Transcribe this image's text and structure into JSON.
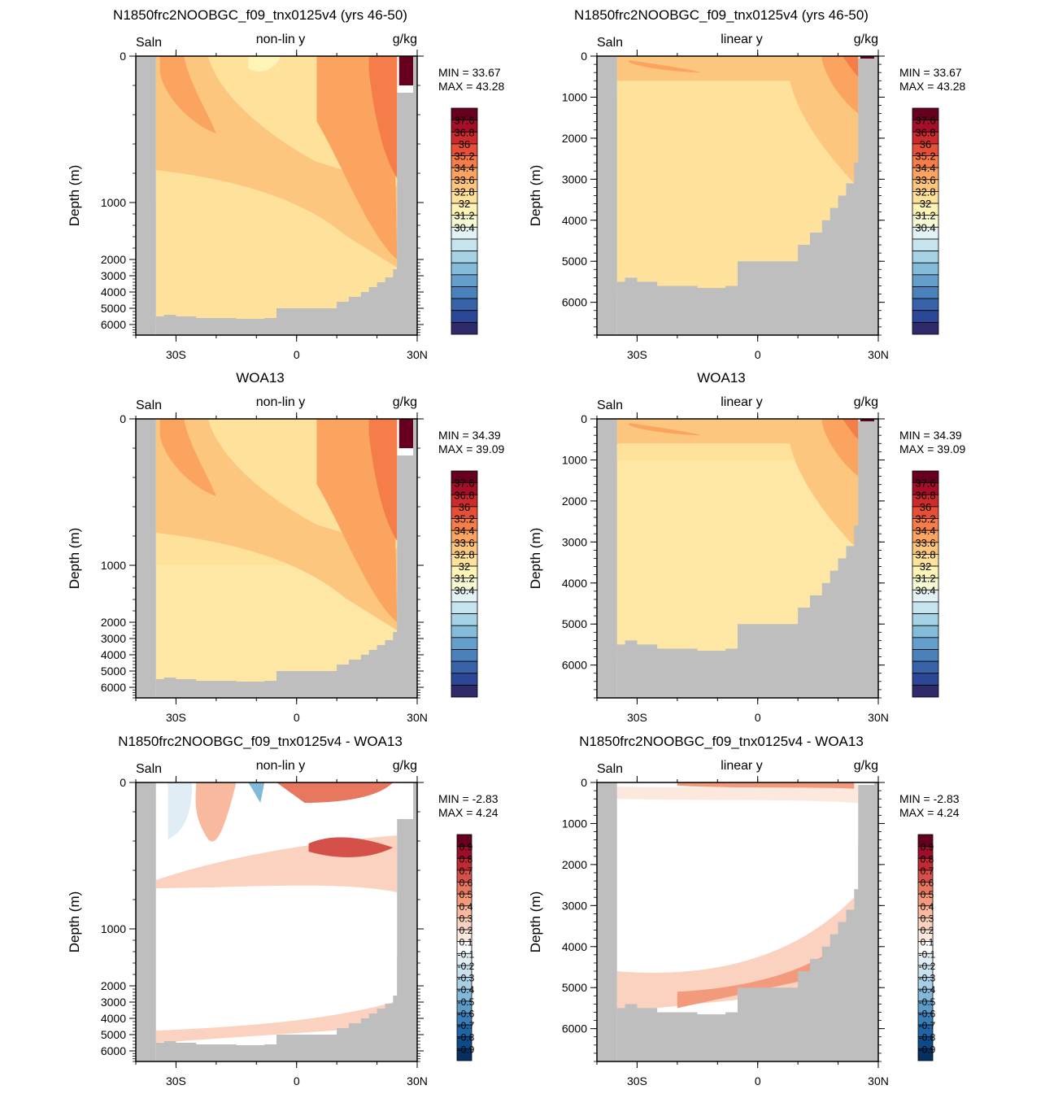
{
  "figure": {
    "common": {
      "field_label": "Saln",
      "units": "g/kg",
      "ylabel": "Depth (m)",
      "xticks": [
        "30S",
        "0",
        "30N"
      ],
      "land_color": "#bebebe"
    },
    "full_colorbar_levels": [
      "37.6",
      "36.8",
      "36",
      "35.2",
      "34.4",
      "33.6",
      "32.8",
      "32",
      "31.2",
      "30.4"
    ],
    "full_colorbar_colors": [
      "#67001f",
      "#a50f27",
      "#cb2b2c",
      "#e54f37",
      "#f57d4a",
      "#fba45f",
      "#fdc67e",
      "#fee29b",
      "#fef4b5",
      "#f6fad4",
      "#e3f2f3",
      "#c6e4ee",
      "#a6d2e5",
      "#83bbd9",
      "#649fcb",
      "#4b81bb",
      "#3863a8",
      "#2b4796",
      "#2f2a6b"
    ],
    "diff_colorbar_levels": [
      "0.9",
      "0.8",
      "0.7",
      "0.6",
      "0.5",
      "0.4",
      "0.3",
      "0.2",
      "0.1",
      "-0.1",
      "-0.2",
      "-0.3",
      "-0.4",
      "-0.5",
      "-0.6",
      "-0.7",
      "-0.8",
      "-0.9"
    ],
    "diff_colorbar_colors": [
      "#67001f",
      "#9e0d2a",
      "#bf2a33",
      "#d6504a",
      "#e8775f",
      "#f49a7c",
      "#f9b99e",
      "#fbd2c0",
      "#fde8dd",
      "#ffffff",
      "#e1edf4",
      "#c9e0ed",
      "#a8cfe4",
      "#82b8d8",
      "#5a9bc8",
      "#3a7db7",
      "#2064a6",
      "#0c4a8a",
      "#053061"
    ]
  },
  "panels": [
    {
      "title": "N1850frc2NOOBGC_f09_tnx0125v4 (yrs 46-50)",
      "subtitle": "non-lin y",
      "scale": "nonlin",
      "kind": "full",
      "yticks": [
        "0",
        "1000",
        "2000",
        "3000",
        "4000",
        "5000",
        "6000"
      ],
      "min_label": "MIN =  33.67",
      "max_label": "MAX =  43.28"
    },
    {
      "title": "N1850frc2NOOBGC_f09_tnx0125v4 (yrs 46-50)",
      "subtitle": "linear y",
      "scale": "linear",
      "kind": "full",
      "yticks": [
        "0",
        "1000",
        "2000",
        "3000",
        "4000",
        "5000",
        "6000"
      ],
      "min_label": "MIN =  33.67",
      "max_label": "MAX =  43.28"
    },
    {
      "title": "WOA13",
      "subtitle": "non-lin y",
      "scale": "nonlin",
      "kind": "full",
      "yticks": [
        "0",
        "1000",
        "2000",
        "3000",
        "4000",
        "5000",
        "6000"
      ],
      "min_label": "MIN =  34.39",
      "max_label": "MAX =  39.09"
    },
    {
      "title": "WOA13",
      "subtitle": "linear y",
      "scale": "linear",
      "kind": "full",
      "yticks": [
        "0",
        "1000",
        "2000",
        "3000",
        "4000",
        "5000",
        "6000"
      ],
      "min_label": "MIN =  34.39",
      "max_label": "MAX =  39.09"
    },
    {
      "title": "N1850frc2NOOBGC_f09_tnx0125v4 - WOA13",
      "subtitle": "non-lin y",
      "scale": "nonlin",
      "kind": "diff",
      "yticks": [
        "0",
        "1000",
        "2000",
        "3000",
        "4000",
        "5000",
        "6000"
      ],
      "min_label": "MIN =  -2.83",
      "max_label": "MAX =   4.24"
    },
    {
      "title": "N1850frc2NOOBGC_f09_tnx0125v4 - WOA13",
      "subtitle": "linear y",
      "scale": "linear",
      "kind": "diff",
      "yticks": [
        "0",
        "1000",
        "2000",
        "3000",
        "4000",
        "5000",
        "6000"
      ],
      "min_label": "MIN =  -2.83",
      "max_label": "MAX =   4.24"
    }
  ],
  "chart_data": [
    {
      "type": "heatmap",
      "title": "N1850frc2NOOBGC_f09_tnx0125v4 (yrs 46-50)",
      "subtitle": "non-lin y",
      "variable": "Saln",
      "units": "g/kg",
      "ylabel": "Depth (m)",
      "x_ticks": [
        "30S",
        "0",
        "30N"
      ],
      "y_ticks": [
        0,
        1000,
        2000,
        3000,
        4000,
        5000,
        6000
      ],
      "y_scale": "non-linear",
      "min": 33.67,
      "max": 43.28,
      "colorbar": [
        37.6,
        36.8,
        36,
        35.2,
        34.4,
        33.6,
        32.8,
        32,
        31.2,
        30.4
      ]
    },
    {
      "type": "heatmap",
      "title": "N1850frc2NOOBGC_f09_tnx0125v4 (yrs 46-50)",
      "subtitle": "linear y",
      "variable": "Saln",
      "units": "g/kg",
      "ylabel": "Depth (m)",
      "x_ticks": [
        "30S",
        "0",
        "30N"
      ],
      "y_ticks": [
        0,
        1000,
        2000,
        3000,
        4000,
        5000,
        6000
      ],
      "y_scale": "linear",
      "min": 33.67,
      "max": 43.28,
      "colorbar": [
        37.6,
        36.8,
        36,
        35.2,
        34.4,
        33.6,
        32.8,
        32,
        31.2,
        30.4
      ]
    },
    {
      "type": "heatmap",
      "title": "WOA13",
      "subtitle": "non-lin y",
      "variable": "Saln",
      "units": "g/kg",
      "ylabel": "Depth (m)",
      "x_ticks": [
        "30S",
        "0",
        "30N"
      ],
      "y_ticks": [
        0,
        1000,
        2000,
        3000,
        4000,
        5000,
        6000
      ],
      "y_scale": "non-linear",
      "min": 34.39,
      "max": 39.09,
      "colorbar": [
        37.6,
        36.8,
        36,
        35.2,
        34.4,
        33.6,
        32.8,
        32,
        31.2,
        30.4
      ]
    },
    {
      "type": "heatmap",
      "title": "WOA13",
      "subtitle": "linear y",
      "variable": "Saln",
      "units": "g/kg",
      "ylabel": "Depth (m)",
      "x_ticks": [
        "30S",
        "0",
        "30N"
      ],
      "y_ticks": [
        0,
        1000,
        2000,
        3000,
        4000,
        5000,
        6000
      ],
      "y_scale": "linear",
      "min": 34.39,
      "max": 39.09,
      "colorbar": [
        37.6,
        36.8,
        36,
        35.2,
        34.4,
        33.6,
        32.8,
        32,
        31.2,
        30.4
      ]
    },
    {
      "type": "heatmap",
      "title": "N1850frc2NOOBGC_f09_tnx0125v4 - WOA13",
      "subtitle": "non-lin y",
      "variable": "Saln",
      "units": "g/kg",
      "ylabel": "Depth (m)",
      "x_ticks": [
        "30S",
        "0",
        "30N"
      ],
      "y_ticks": [
        0,
        1000,
        2000,
        3000,
        4000,
        5000,
        6000
      ],
      "y_scale": "non-linear",
      "min": -2.83,
      "max": 4.24,
      "colorbar": [
        0.9,
        0.8,
        0.7,
        0.6,
        0.5,
        0.4,
        0.3,
        0.2,
        0.1,
        -0.1,
        -0.2,
        -0.3,
        -0.4,
        -0.5,
        -0.6,
        -0.7,
        -0.8,
        -0.9
      ]
    },
    {
      "type": "heatmap",
      "title": "N1850frc2NOOBGC_f09_tnx0125v4 - WOA13",
      "subtitle": "linear y",
      "variable": "Saln",
      "units": "g/kg",
      "ylabel": "Depth (m)",
      "x_ticks": [
        "30S",
        "0",
        "30N"
      ],
      "y_ticks": [
        0,
        1000,
        2000,
        3000,
        4000,
        5000,
        6000
      ],
      "y_scale": "linear",
      "min": -2.83,
      "max": 4.24,
      "colorbar": [
        0.9,
        0.8,
        0.7,
        0.6,
        0.5,
        0.4,
        0.3,
        0.2,
        0.1,
        -0.1,
        -0.2,
        -0.3,
        -0.4,
        -0.5,
        -0.6,
        -0.7,
        -0.8,
        -0.9
      ]
    }
  ]
}
